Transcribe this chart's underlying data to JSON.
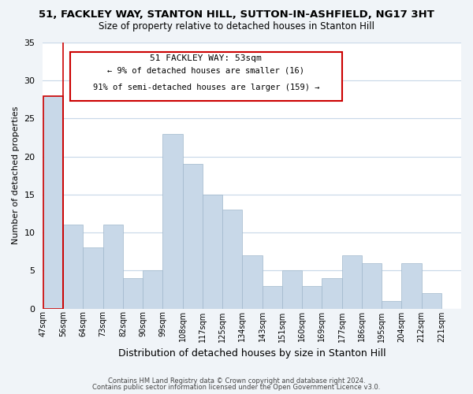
{
  "title_line1": "51, FACKLEY WAY, STANTON HILL, SUTTON-IN-ASHFIELD, NG17 3HT",
  "title_line2": "Size of property relative to detached houses in Stanton Hill",
  "xlabel": "Distribution of detached houses by size in Stanton Hill",
  "ylabel": "Number of detached properties",
  "bin_labels": [
    "47sqm",
    "56sqm",
    "64sqm",
    "73sqm",
    "82sqm",
    "90sqm",
    "99sqm",
    "108sqm",
    "117sqm",
    "125sqm",
    "134sqm",
    "143sqm",
    "151sqm",
    "160sqm",
    "169sqm",
    "177sqm",
    "186sqm",
    "195sqm",
    "204sqm",
    "212sqm",
    "221sqm"
  ],
  "bar_values": [
    28,
    11,
    8,
    11,
    4,
    5,
    23,
    19,
    15,
    13,
    7,
    3,
    5,
    3,
    4,
    7,
    6,
    1,
    6,
    2,
    0
  ],
  "bar_color": "#c8d8e8",
  "bar_edge_color": "#a0b8cc",
  "ylim": [
    0,
    35
  ],
  "yticks": [
    0,
    5,
    10,
    15,
    20,
    25,
    30,
    35
  ],
  "annotation_title": "51 FACKLEY WAY: 53sqm",
  "annotation_line2": "← 9% of detached houses are smaller (16)",
  "annotation_line3": "91% of semi-detached houses are larger (159) →",
  "footer_line1": "Contains HM Land Registry data © Crown copyright and database right 2024.",
  "footer_line2": "Contains public sector information licensed under the Open Government Licence v3.0.",
  "background_color": "#f0f4f8",
  "plot_background_color": "#ffffff",
  "grid_color": "#c8d8e8",
  "red_color": "#cc0000"
}
